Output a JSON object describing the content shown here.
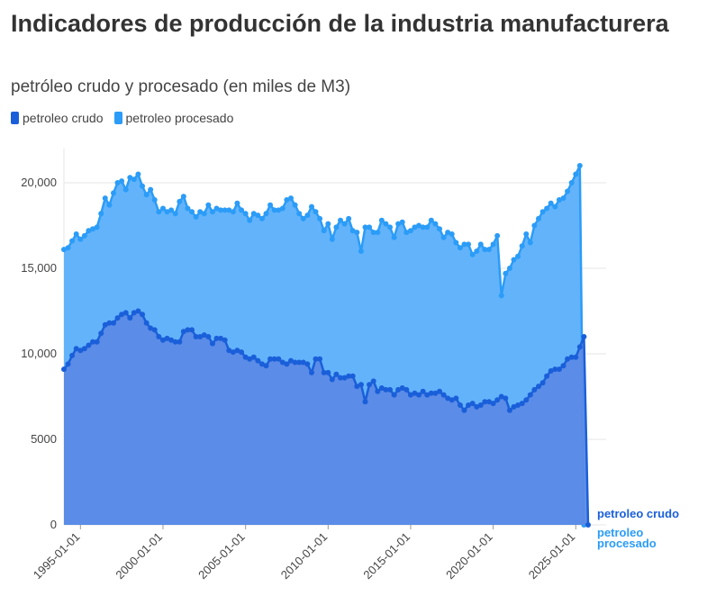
{
  "title": "Indicadores de producción de la industria manufacturera",
  "subtitle": "petróleo crudo y procesado (en miles de M3)",
  "colors": {
    "crudo": "#1a5fd9",
    "crudo_fill": "#5b8ae6",
    "procesado": "#2b9cf7",
    "procesado_fill": "#63b3fb",
    "grid": "#e6e6e6"
  },
  "chart_data": {
    "type": "area",
    "title": "Indicadores de producción de la industria manufacturera",
    "subtitle": "petróleo crudo y procesado (en miles de M3)",
    "x_ticks": [
      "1995-01-01",
      "2000-01-01",
      "2005-01-01",
      "2010-01-01",
      "2015-01-01",
      "2020-01-01",
      "2025-01-01"
    ],
    "y_ticks": [
      "0",
      "5000",
      "10,000",
      "15,000",
      "20,000"
    ],
    "ylim": [
      0,
      22000
    ],
    "legend": "top-left",
    "series": [
      {
        "name": "petroleo crudo",
        "end_label": "petroleo crudo",
        "values": [
          [
            "1994-01-01",
            9100
          ],
          [
            "1994-04-01",
            9400
          ],
          [
            "1994-07-01",
            9900
          ],
          [
            "1994-10-01",
            10300
          ],
          [
            "1995-01-01",
            10200
          ],
          [
            "1995-04-01",
            10300
          ],
          [
            "1995-07-01",
            10500
          ],
          [
            "1995-10-01",
            10700
          ],
          [
            "1996-01-01",
            10700
          ],
          [
            "1996-04-01",
            11200
          ],
          [
            "1996-07-01",
            11700
          ],
          [
            "1996-10-01",
            11800
          ],
          [
            "1997-01-01",
            11800
          ],
          [
            "1997-04-01",
            12100
          ],
          [
            "1997-07-01",
            12300
          ],
          [
            "1997-10-01",
            12400
          ],
          [
            "1998-01-01",
            12100
          ],
          [
            "1998-04-01",
            12400
          ],
          [
            "1998-07-01",
            12500
          ],
          [
            "1998-10-01",
            12300
          ],
          [
            "1999-01-01",
            11800
          ],
          [
            "1999-04-01",
            11500
          ],
          [
            "1999-07-01",
            11400
          ],
          [
            "1999-10-01",
            11000
          ],
          [
            "2000-01-01",
            10800
          ],
          [
            "2000-04-01",
            10900
          ],
          [
            "2000-07-01",
            10800
          ],
          [
            "2000-10-01",
            10700
          ],
          [
            "2001-01-01",
            10700
          ],
          [
            "2001-04-01",
            11300
          ],
          [
            "2001-07-01",
            11400
          ],
          [
            "2001-10-01",
            11400
          ],
          [
            "2002-01-01",
            11000
          ],
          [
            "2002-04-01",
            11000
          ],
          [
            "2002-07-01",
            11100
          ],
          [
            "2002-10-01",
            11000
          ],
          [
            "2003-01-01",
            10600
          ],
          [
            "2003-04-01",
            10900
          ],
          [
            "2003-07-01",
            10900
          ],
          [
            "2003-10-01",
            10800
          ],
          [
            "2004-01-01",
            10200
          ],
          [
            "2004-04-01",
            10100
          ],
          [
            "2004-07-01",
            10200
          ],
          [
            "2004-10-01",
            10100
          ],
          [
            "2005-01-01",
            9800
          ],
          [
            "2005-04-01",
            9700
          ],
          [
            "2005-07-01",
            9800
          ],
          [
            "2005-10-01",
            9600
          ],
          [
            "2006-01-01",
            9400
          ],
          [
            "2006-04-01",
            9300
          ],
          [
            "2006-07-01",
            9700
          ],
          [
            "2006-10-01",
            9700
          ],
          [
            "2007-01-01",
            9700
          ],
          [
            "2007-04-01",
            9500
          ],
          [
            "2007-07-01",
            9400
          ],
          [
            "2007-10-01",
            9600
          ],
          [
            "2008-01-01",
            9500
          ],
          [
            "2008-04-01",
            9500
          ],
          [
            "2008-07-01",
            9500
          ],
          [
            "2008-10-01",
            9400
          ],
          [
            "2009-01-01",
            8900
          ],
          [
            "2009-04-01",
            9700
          ],
          [
            "2009-07-01",
            9700
          ],
          [
            "2009-10-01",
            8900
          ],
          [
            "2010-01-01",
            8900
          ],
          [
            "2010-04-01",
            8500
          ],
          [
            "2010-07-01",
            8800
          ],
          [
            "2010-10-01",
            8600
          ],
          [
            "2011-01-01",
            8600
          ],
          [
            "2011-04-01",
            8700
          ],
          [
            "2011-07-01",
            8700
          ],
          [
            "2011-10-01",
            8100
          ],
          [
            "2012-01-01",
            8200
          ],
          [
            "2012-04-01",
            7200
          ],
          [
            "2012-07-01",
            8200
          ],
          [
            "2012-10-01",
            8400
          ],
          [
            "2013-01-01",
            7800
          ],
          [
            "2013-04-01",
            8000
          ],
          [
            "2013-07-01",
            7900
          ],
          [
            "2013-10-01",
            7900
          ],
          [
            "2014-01-01",
            7600
          ],
          [
            "2014-04-01",
            7900
          ],
          [
            "2014-07-01",
            8000
          ],
          [
            "2014-10-01",
            7900
          ],
          [
            "2015-01-01",
            7600
          ],
          [
            "2015-04-01",
            7700
          ],
          [
            "2015-07-01",
            7600
          ],
          [
            "2015-10-01",
            7800
          ],
          [
            "2016-01-01",
            7600
          ],
          [
            "2016-04-01",
            7700
          ],
          [
            "2016-07-01",
            7700
          ],
          [
            "2016-10-01",
            7800
          ],
          [
            "2017-01-01",
            7600
          ],
          [
            "2017-04-01",
            7400
          ],
          [
            "2017-07-01",
            7300
          ],
          [
            "2017-10-01",
            7400
          ],
          [
            "2018-01-01",
            7000
          ],
          [
            "2018-04-01",
            6700
          ],
          [
            "2018-07-01",
            7000
          ],
          [
            "2018-10-01",
            7100
          ],
          [
            "2019-01-01",
            6900
          ],
          [
            "2019-04-01",
            7000
          ],
          [
            "2019-07-01",
            7200
          ],
          [
            "2019-10-01",
            7200
          ],
          [
            "2020-01-01",
            7100
          ],
          [
            "2020-04-01",
            7300
          ],
          [
            "2020-07-01",
            7500
          ],
          [
            "2020-10-01",
            7400
          ],
          [
            "2021-01-01",
            6700
          ],
          [
            "2021-04-01",
            6900
          ],
          [
            "2021-07-01",
            7000
          ],
          [
            "2021-10-01",
            7100
          ],
          [
            "2022-01-01",
            7300
          ],
          [
            "2022-04-01",
            7600
          ],
          [
            "2022-07-01",
            7900
          ],
          [
            "2022-10-01",
            8100
          ],
          [
            "2023-01-01",
            8300
          ],
          [
            "2023-04-01",
            8700
          ],
          [
            "2023-07-01",
            9000
          ],
          [
            "2023-10-01",
            9100
          ],
          [
            "2024-01-01",
            9100
          ],
          [
            "2024-04-01",
            9300
          ],
          [
            "2024-07-01",
            9700
          ],
          [
            "2024-10-01",
            9800
          ],
          [
            "2025-01-01",
            9800
          ],
          [
            "2025-04-01",
            10400
          ],
          [
            "2025-07-01",
            11000
          ],
          [
            "2025-10-01",
            0
          ]
        ]
      },
      {
        "name": "petroleo procesado",
        "end_label": "petroleo procesado",
        "values": [
          [
            "1994-01-01",
            16100
          ],
          [
            "1994-04-01",
            16200
          ],
          [
            "1994-07-01",
            16600
          ],
          [
            "1994-10-01",
            17000
          ],
          [
            "1995-01-01",
            16700
          ],
          [
            "1995-04-01",
            16900
          ],
          [
            "1995-07-01",
            17200
          ],
          [
            "1995-10-01",
            17300
          ],
          [
            "1996-01-01",
            17400
          ],
          [
            "1996-04-01",
            18200
          ],
          [
            "1996-07-01",
            19100
          ],
          [
            "1996-10-01",
            18700
          ],
          [
            "1997-01-01",
            19400
          ],
          [
            "1997-04-01",
            20000
          ],
          [
            "1997-07-01",
            20100
          ],
          [
            "1997-10-01",
            19600
          ],
          [
            "1998-01-01",
            20300
          ],
          [
            "1998-04-01",
            20200
          ],
          [
            "1998-07-01",
            20500
          ],
          [
            "1998-10-01",
            19800
          ],
          [
            "1999-01-01",
            19300
          ],
          [
            "1999-04-01",
            19600
          ],
          [
            "1999-07-01",
            19000
          ],
          [
            "1999-10-01",
            18300
          ],
          [
            "2000-01-01",
            18500
          ],
          [
            "2000-04-01",
            18300
          ],
          [
            "2000-07-01",
            18400
          ],
          [
            "2000-10-01",
            18200
          ],
          [
            "2001-01-01",
            18900
          ],
          [
            "2001-04-01",
            19200
          ],
          [
            "2001-07-01",
            18500
          ],
          [
            "2001-10-01",
            18300
          ],
          [
            "2002-01-01",
            18000
          ],
          [
            "2002-04-01",
            18300
          ],
          [
            "2002-07-01",
            18200
          ],
          [
            "2002-10-01",
            18700
          ],
          [
            "2003-01-01",
            18300
          ],
          [
            "2003-04-01",
            18500
          ],
          [
            "2003-07-01",
            18400
          ],
          [
            "2003-10-01",
            18400
          ],
          [
            "2004-01-01",
            18400
          ],
          [
            "2004-04-01",
            18300
          ],
          [
            "2004-07-01",
            18800
          ],
          [
            "2004-10-01",
            18400
          ],
          [
            "2005-01-01",
            18200
          ],
          [
            "2005-04-01",
            17800
          ],
          [
            "2005-07-01",
            18200
          ],
          [
            "2005-10-01",
            18100
          ],
          [
            "2006-01-01",
            17900
          ],
          [
            "2006-04-01",
            18200
          ],
          [
            "2006-07-01",
            18700
          ],
          [
            "2006-10-01",
            18400
          ],
          [
            "2007-01-01",
            18400
          ],
          [
            "2007-04-01",
            18500
          ],
          [
            "2007-07-01",
            19000
          ],
          [
            "2007-10-01",
            19100
          ],
          [
            "2008-01-01",
            18700
          ],
          [
            "2008-04-01",
            18200
          ],
          [
            "2008-07-01",
            17900
          ],
          [
            "2008-10-01",
            18100
          ],
          [
            "2009-01-01",
            18600
          ],
          [
            "2009-04-01",
            18300
          ],
          [
            "2009-07-01",
            17900
          ],
          [
            "2009-10-01",
            17200
          ],
          [
            "2010-01-01",
            17600
          ],
          [
            "2010-04-01",
            16700
          ],
          [
            "2010-07-01",
            17400
          ],
          [
            "2010-10-01",
            17800
          ],
          [
            "2011-01-01",
            17600
          ],
          [
            "2011-04-01",
            17900
          ],
          [
            "2011-07-01",
            17200
          ],
          [
            "2011-10-01",
            17100
          ],
          [
            "2012-01-01",
            16000
          ],
          [
            "2012-04-01",
            17400
          ],
          [
            "2012-07-01",
            17400
          ],
          [
            "2012-10-01",
            17100
          ],
          [
            "2013-01-01",
            17100
          ],
          [
            "2013-04-01",
            17800
          ],
          [
            "2013-07-01",
            17600
          ],
          [
            "2013-10-01",
            17400
          ],
          [
            "2014-01-01",
            16800
          ],
          [
            "2014-04-01",
            17600
          ],
          [
            "2014-07-01",
            17700
          ],
          [
            "2014-10-01",
            17100
          ],
          [
            "2015-01-01",
            17200
          ],
          [
            "2015-04-01",
            17400
          ],
          [
            "2015-07-01",
            17500
          ],
          [
            "2015-10-01",
            17400
          ],
          [
            "2016-01-01",
            17400
          ],
          [
            "2016-04-01",
            17800
          ],
          [
            "2016-07-01",
            17600
          ],
          [
            "2016-10-01",
            17300
          ],
          [
            "2017-01-01",
            16800
          ],
          [
            "2017-04-01",
            17100
          ],
          [
            "2017-07-01",
            17000
          ],
          [
            "2017-10-01",
            16500
          ],
          [
            "2018-01-01",
            16200
          ],
          [
            "2018-04-01",
            16400
          ],
          [
            "2018-07-01",
            16400
          ],
          [
            "2018-10-01",
            15800
          ],
          [
            "2019-01-01",
            16000
          ],
          [
            "2019-04-01",
            16400
          ],
          [
            "2019-07-01",
            16100
          ],
          [
            "2019-10-01",
            16100
          ],
          [
            "2020-01-01",
            16400
          ],
          [
            "2020-04-01",
            16900
          ],
          [
            "2020-07-01",
            13400
          ],
          [
            "2020-10-01",
            14700
          ],
          [
            "2021-01-01",
            15000
          ],
          [
            "2021-04-01",
            15500
          ],
          [
            "2021-07-01",
            15700
          ],
          [
            "2021-10-01",
            16300
          ],
          [
            "2022-01-01",
            17000
          ],
          [
            "2022-04-01",
            16500
          ],
          [
            "2022-07-01",
            17500
          ],
          [
            "2022-10-01",
            17900
          ],
          [
            "2023-01-01",
            18300
          ],
          [
            "2023-04-01",
            18500
          ],
          [
            "2023-07-01",
            18800
          ],
          [
            "2023-10-01",
            18600
          ],
          [
            "2024-01-01",
            19000
          ],
          [
            "2024-04-01",
            19100
          ],
          [
            "2024-07-01",
            19500
          ],
          [
            "2024-10-01",
            20000
          ],
          [
            "2025-01-01",
            20500
          ],
          [
            "2025-04-01",
            21000
          ],
          [
            "2025-07-01",
            0
          ]
        ]
      }
    ]
  }
}
